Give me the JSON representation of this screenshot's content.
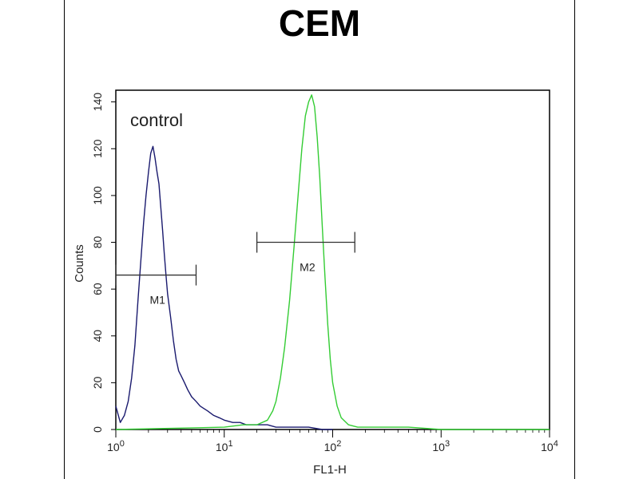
{
  "chart_data": {
    "type": "line",
    "title": "CEM",
    "xlabel": "FL1-H",
    "ylabel": "Counts",
    "x_scale": "log",
    "xlim": [
      1,
      10000
    ],
    "ylim": [
      0,
      145
    ],
    "x_ticks": [
      {
        "value": 1,
        "base": "10",
        "exp": "0"
      },
      {
        "value": 10,
        "base": "10",
        "exp": "1"
      },
      {
        "value": 100,
        "base": "10",
        "exp": "2"
      },
      {
        "value": 1000,
        "base": "10",
        "exp": "3"
      },
      {
        "value": 10000,
        "base": "10",
        "exp": "4"
      }
    ],
    "y_ticks": [
      0,
      20,
      40,
      60,
      80,
      100,
      120,
      140
    ],
    "grid": false,
    "annotation_text": "control",
    "series": [
      {
        "name": "control",
        "color": "#1a1a6e",
        "x": [
          1.0,
          1.1,
          1.2,
          1.3,
          1.4,
          1.5,
          1.6,
          1.7,
          1.8,
          1.9,
          2.0,
          2.1,
          2.2,
          2.3,
          2.4,
          2.5,
          2.6,
          2.7,
          2.8,
          2.9,
          3.0,
          3.2,
          3.4,
          3.6,
          3.8,
          4.0,
          4.3,
          4.6,
          5.0,
          5.5,
          6.0,
          7.0,
          8.0,
          9.0,
          10,
          12,
          14,
          16,
          18,
          20,
          25,
          30,
          40,
          50,
          60,
          80,
          100
        ],
        "values": [
          10,
          3,
          6,
          12,
          22,
          36,
          55,
          72,
          88,
          100,
          110,
          118,
          121,
          116,
          110,
          105,
          95,
          85,
          75,
          66,
          58,
          48,
          38,
          30,
          25,
          23,
          20,
          17,
          14,
          12,
          10,
          8,
          6,
          5,
          4,
          3,
          3,
          2,
          2,
          2,
          2,
          1,
          1,
          1,
          1,
          0,
          0
        ]
      },
      {
        "name": "",
        "color": "#33cc33",
        "x": [
          1,
          10,
          15,
          20,
          25,
          28,
          30,
          33,
          36,
          40,
          44,
          48,
          52,
          56,
          60,
          64,
          68,
          72,
          76,
          80,
          85,
          90,
          95,
          100,
          110,
          120,
          140,
          170,
          200,
          300,
          500,
          1000,
          3000,
          10000
        ],
        "values": [
          0,
          1,
          2,
          2,
          4,
          8,
          12,
          22,
          35,
          55,
          78,
          100,
          120,
          134,
          140,
          143,
          138,
          125,
          108,
          88,
          65,
          45,
          30,
          20,
          10,
          5,
          2,
          1,
          1,
          1,
          1,
          0,
          0,
          0
        ]
      }
    ],
    "markers": [
      {
        "label": "M1",
        "x_start": 1.0,
        "x_end": 5.5,
        "y": 66
      },
      {
        "label": "M2",
        "x_start": 20,
        "x_end": 160,
        "y": 80
      }
    ]
  }
}
